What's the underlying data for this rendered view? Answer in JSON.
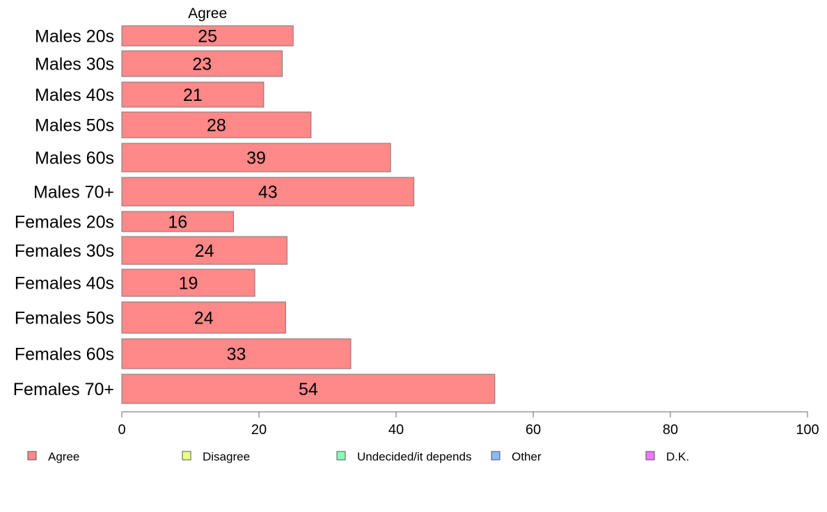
{
  "chart_data": {
    "type": "bar",
    "orientation": "horizontal",
    "stacked": true,
    "categories": [
      "Males 20s",
      "Males 30s",
      "Males 40s",
      "Males 50s",
      "Males 60s",
      "Males 70+",
      "Females 20s",
      "Females 30s",
      "Females 40s",
      "Females 50s",
      "Females 60s",
      "Females 70+"
    ],
    "series": [
      {
        "name": "Agree",
        "color": "#ff8888",
        "values": [
          25.0,
          23.4,
          20.7,
          27.6,
          39.2,
          42.6,
          16.3,
          24.1,
          19.4,
          23.9,
          33.4,
          54.4
        ],
        "labels": [
          "25",
          "23",
          "21",
          "28",
          "39",
          "43",
          "16",
          "24",
          "19",
          "24",
          "33",
          "54"
        ]
      }
    ],
    "series_header": "Agree",
    "xlim": [
      0,
      100
    ],
    "x_ticks": [
      0,
      20,
      40,
      60,
      80,
      100
    ],
    "x_tick_labels": [
      "0",
      "20",
      "40",
      "60",
      "80",
      "100"
    ],
    "grid": false,
    "legend": {
      "position": "bottom",
      "entries": [
        {
          "name": "Agree",
          "color": "#ff8888"
        },
        {
          "name": "Disagree",
          "color": "#eeff88"
        },
        {
          "name": "Undecided/it depends",
          "color": "#88ffbb"
        },
        {
          "name": "Other",
          "color": "#88bbff"
        },
        {
          "name": "D.K.",
          "color": "#ee77ff"
        }
      ]
    },
    "title": "",
    "xlabel": "",
    "ylabel": ""
  }
}
